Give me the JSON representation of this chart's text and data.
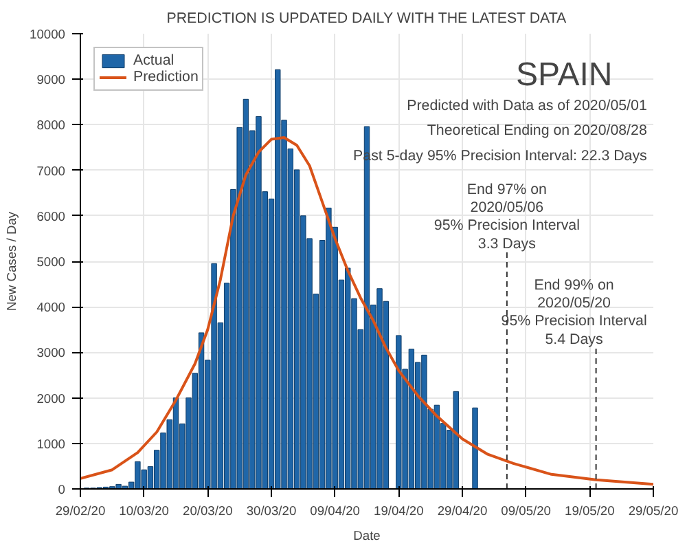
{
  "chart_data": {
    "type": "bar",
    "title": "PREDICTION IS UPDATED DAILY WITH THE LATEST DATA",
    "xlabel": "Date",
    "ylabel": "New Cases / Day",
    "x": [
      "2020-03-01",
      "2020-03-02",
      "2020-03-03",
      "2020-03-04",
      "2020-03-05",
      "2020-03-06",
      "2020-03-07",
      "2020-03-08",
      "2020-03-09",
      "2020-03-10",
      "2020-03-11",
      "2020-03-12",
      "2020-03-13",
      "2020-03-14",
      "2020-03-15",
      "2020-03-16",
      "2020-03-17",
      "2020-03-18",
      "2020-03-19",
      "2020-03-20",
      "2020-03-21",
      "2020-03-22",
      "2020-03-23",
      "2020-03-24",
      "2020-03-25",
      "2020-03-26",
      "2020-03-27",
      "2020-03-28",
      "2020-03-29",
      "2020-03-30",
      "2020-03-31",
      "2020-04-01",
      "2020-04-02",
      "2020-04-03",
      "2020-04-04",
      "2020-04-05",
      "2020-04-06",
      "2020-04-07",
      "2020-04-08",
      "2020-04-09",
      "2020-04-10",
      "2020-04-11",
      "2020-04-12",
      "2020-04-13",
      "2020-04-14",
      "2020-04-15",
      "2020-04-16",
      "2020-04-17",
      "2020-04-18",
      "2020-04-19",
      "2020-04-20",
      "2020-04-21",
      "2020-04-22",
      "2020-04-23",
      "2020-04-24",
      "2020-04-25",
      "2020-04-26",
      "2020-04-27",
      "2020-04-28",
      "2020-04-29",
      "2020-04-30",
      "2020-05-01"
    ],
    "series": [
      {
        "name": "Actual",
        "color": "#1f66a8",
        "values": [
          20,
          20,
          30,
          40,
          50,
          100,
          60,
          150,
          600,
          420,
          490,
          850,
          1230,
          1520,
          2000,
          1430,
          2000,
          2540,
          3430,
          2830,
          4950,
          3650,
          4520,
          6580,
          7940,
          8560,
          7870,
          8180,
          6530,
          6370,
          9210,
          8100,
          7470,
          7010,
          6000,
          5500,
          4280,
          5460,
          6170,
          5750,
          4590,
          4850,
          4180,
          3500,
          7960,
          4040,
          4400,
          4120,
          null,
          3370,
          2630,
          3070,
          2780,
          2940,
          1750,
          1840,
          1440,
          1290,
          2140,
          null,
          null,
          1780
        ]
      },
      {
        "name": "Prediction",
        "type": "line",
        "color": "#d95319",
        "x": [
          "2020-02-29",
          "2020-03-05",
          "2020-03-09",
          "2020-03-12",
          "2020-03-15",
          "2020-03-18",
          "2020-03-20",
          "2020-03-22",
          "2020-03-24",
          "2020-03-26",
          "2020-03-28",
          "2020-03-30",
          "2020-04-01",
          "2020-04-03",
          "2020-04-05",
          "2020-04-07",
          "2020-04-09",
          "2020-04-11",
          "2020-04-13",
          "2020-04-15",
          "2020-04-17",
          "2020-04-19",
          "2020-04-22",
          "2020-04-25",
          "2020-04-29",
          "2020-05-03",
          "2020-05-07",
          "2020-05-13",
          "2020-05-20",
          "2020-05-29"
        ],
        "values": [
          230,
          420,
          800,
          1250,
          1950,
          2750,
          3500,
          4600,
          6000,
          6900,
          7400,
          7680,
          7720,
          7550,
          7100,
          6300,
          5500,
          4800,
          4200,
          3700,
          3100,
          2600,
          2050,
          1600,
          1100,
          760,
          560,
          320,
          200,
          100
        ]
      }
    ],
    "xlim": [
      "2020-02-29",
      "2020-05-29"
    ],
    "xticks": [
      {
        "value": "2020-02-29",
        "label": "29/02/20"
      },
      {
        "value": "2020-03-10",
        "label": "10/03/20"
      },
      {
        "value": "2020-03-20",
        "label": "20/03/20"
      },
      {
        "value": "2020-03-30",
        "label": "30/03/20"
      },
      {
        "value": "2020-04-09",
        "label": "09/04/20"
      },
      {
        "value": "2020-04-19",
        "label": "19/04/20"
      },
      {
        "value": "2020-04-29",
        "label": "29/04/20"
      },
      {
        "value": "2020-05-09",
        "label": "09/05/20"
      },
      {
        "value": "2020-05-19",
        "label": "19/05/20"
      },
      {
        "value": "2020-05-29",
        "label": "29/05/20"
      }
    ],
    "ylim": [
      0,
      10000
    ],
    "yticks": [
      0,
      1000,
      2000,
      3000,
      4000,
      5000,
      6000,
      7000,
      8000,
      9000,
      10000
    ],
    "ref_lines": [
      {
        "axis": "x",
        "value": "2020-05-06",
        "label": "End 97% on\n2020/05/06\n95% Precision Interval\n3.3 Days",
        "color": "#333333",
        "line_style": "dashed"
      },
      {
        "axis": "x",
        "value": "2020-05-20",
        "label": "End 99% on\n2020/05/20\n95% Precision Interval\n5.4 Days",
        "color": "#333333",
        "line_style": "dashed"
      }
    ],
    "annotations": [
      "SPAIN",
      "Predicted with Data as of 2020/05/01",
      "Theoretical Ending on 2020/08/28",
      "Past 5-day 95% Precision Interval: 22.3 Days"
    ],
    "grid": true,
    "legend": "top left"
  }
}
